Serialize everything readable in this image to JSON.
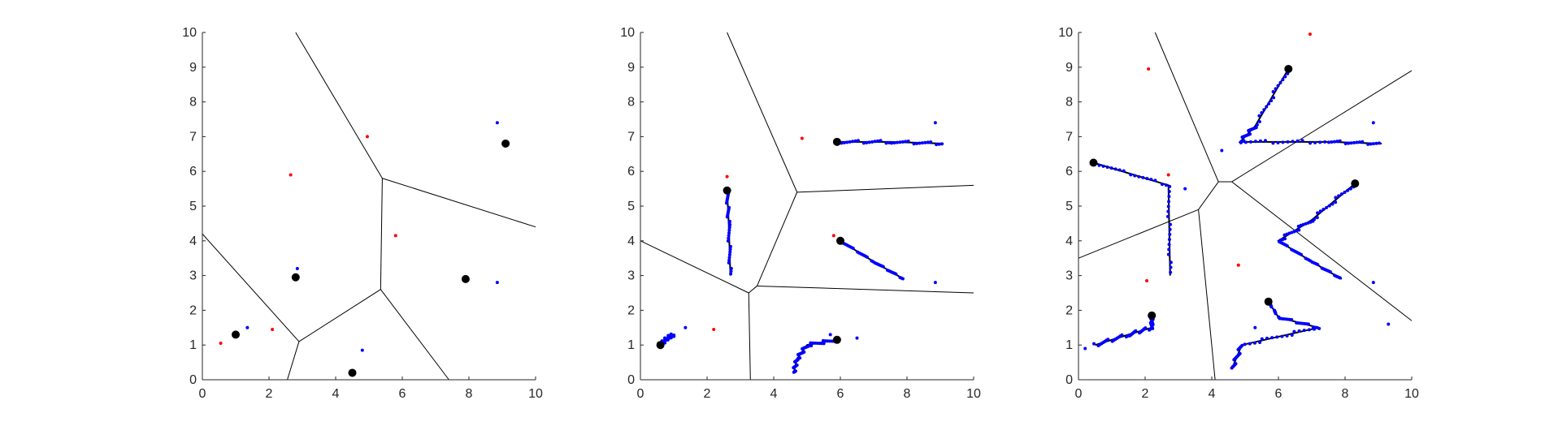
{
  "colors": {
    "axis": "#262626",
    "voronoi": "#000000",
    "blue": "#0000ff",
    "red": "#ff0000",
    "black": "#000000"
  },
  "chart_data": [
    {
      "type": "scatter",
      "title": "",
      "xlabel": "",
      "ylabel": "",
      "xlim": [
        0,
        10
      ],
      "ylim": [
        0,
        10
      ],
      "xticks": [
        "0",
        "2",
        "4",
        "6",
        "8",
        "10"
      ],
      "yticks": [
        "0",
        "1",
        "2",
        "3",
        "4",
        "5",
        "6",
        "7",
        "8",
        "9",
        "10"
      ],
      "voronoi_edges": [
        [
          [
            2.8,
            10
          ],
          [
            5.4,
            5.8
          ]
        ],
        [
          [
            5.4,
            5.8
          ],
          [
            10,
            4.4
          ]
        ],
        [
          [
            5.4,
            5.8
          ],
          [
            5.35,
            2.6
          ]
        ],
        [
          [
            5.35,
            2.6
          ],
          [
            2.9,
            1.1
          ]
        ],
        [
          [
            5.35,
            2.6
          ],
          [
            7.4,
            0
          ]
        ],
        [
          [
            2.9,
            1.1
          ],
          [
            0,
            4.2
          ]
        ],
        [
          [
            2.9,
            1.1
          ],
          [
            2.55,
            0
          ]
        ]
      ],
      "centers": [
        [
          1.0,
          1.3
        ],
        [
          2.8,
          2.95
        ],
        [
          4.5,
          0.2
        ],
        [
          7.9,
          2.9
        ],
        [
          9.1,
          6.8
        ]
      ],
      "red_points": [
        [
          0.55,
          1.05
        ],
        [
          2.1,
          1.45
        ],
        [
          2.65,
          5.9
        ],
        [
          4.95,
          7.0
        ],
        [
          5.8,
          4.15
        ]
      ],
      "blue_points": [
        [
          1.35,
          1.5
        ],
        [
          2.85,
          3.2
        ],
        [
          4.8,
          0.85
        ],
        [
          8.85,
          2.8
        ],
        [
          8.85,
          7.4
        ]
      ],
      "trajectories": []
    },
    {
      "type": "scatter",
      "title": "",
      "xlabel": "",
      "ylabel": "",
      "xlim": [
        0,
        10
      ],
      "ylim": [
        0,
        10
      ],
      "xticks": [
        "0",
        "2",
        "4",
        "6",
        "8",
        "10"
      ],
      "yticks": [
        "0",
        "1",
        "2",
        "3",
        "4",
        "5",
        "6",
        "7",
        "8",
        "9",
        "10"
      ],
      "voronoi_edges": [
        [
          [
            2.6,
            10
          ],
          [
            4.7,
            5.4
          ]
        ],
        [
          [
            4.7,
            5.4
          ],
          [
            10,
            5.6
          ]
        ],
        [
          [
            4.7,
            5.4
          ],
          [
            3.5,
            2.7
          ]
        ],
        [
          [
            3.5,
            2.7
          ],
          [
            10,
            2.5
          ]
        ],
        [
          [
            3.5,
            2.7
          ],
          [
            3.25,
            2.5
          ]
        ],
        [
          [
            3.25,
            2.5
          ],
          [
            0,
            4.0
          ]
        ],
        [
          [
            3.25,
            2.5
          ],
          [
            3.3,
            0
          ]
        ]
      ],
      "centers": [
        [
          0.6,
          1.0
        ],
        [
          2.6,
          5.45
        ],
        [
          5.9,
          6.85
        ],
        [
          6.0,
          4.0
        ],
        [
          5.9,
          1.15
        ]
      ],
      "red_points": [
        [
          0.55,
          1.05
        ],
        [
          2.2,
          1.45
        ],
        [
          2.6,
          5.85
        ],
        [
          4.85,
          6.95
        ],
        [
          5.8,
          4.15
        ]
      ],
      "blue_points": [
        [
          1.35,
          1.5
        ],
        [
          8.85,
          2.8
        ],
        [
          8.85,
          7.4
        ],
        [
          5.7,
          1.3
        ],
        [
          6.5,
          1.2
        ]
      ],
      "trajectories": [
        [
          [
            0.6,
            1.0
          ],
          [
            0.8,
            1.2
          ],
          [
            1.0,
            1.3
          ]
        ],
        [
          [
            2.6,
            5.45
          ],
          [
            2.65,
            4.5
          ],
          [
            2.7,
            3.0
          ]
        ],
        [
          [
            5.9,
            6.85
          ],
          [
            7.5,
            6.85
          ],
          [
            9.1,
            6.8
          ]
        ],
        [
          [
            6.0,
            4.0
          ],
          [
            7.0,
            3.4
          ],
          [
            7.9,
            2.9
          ]
        ],
        [
          [
            5.9,
            1.15
          ],
          [
            5.0,
            1.0
          ],
          [
            4.7,
            0.6
          ],
          [
            4.6,
            0.2
          ]
        ]
      ]
    },
    {
      "type": "scatter",
      "title": "",
      "xlabel": "",
      "ylabel": "",
      "xlim": [
        0,
        10
      ],
      "ylim": [
        0,
        10
      ],
      "xticks": [
        "0",
        "2",
        "4",
        "6",
        "8",
        "10"
      ],
      "yticks": [
        "0",
        "1",
        "2",
        "3",
        "4",
        "5",
        "6",
        "7",
        "8",
        "9",
        "10"
      ],
      "voronoi_edges": [
        [
          [
            2.3,
            10
          ],
          [
            4.2,
            5.7
          ]
        ],
        [
          [
            4.2,
            5.7
          ],
          [
            4.6,
            5.7
          ]
        ],
        [
          [
            4.6,
            5.7
          ],
          [
            10,
            8.9
          ]
        ],
        [
          [
            4.6,
            5.7
          ],
          [
            10,
            1.7
          ]
        ],
        [
          [
            4.2,
            5.7
          ],
          [
            3.6,
            4.9
          ]
        ],
        [
          [
            3.6,
            4.9
          ],
          [
            0,
            3.5
          ]
        ],
        [
          [
            3.6,
            4.9
          ],
          [
            4.1,
            0
          ]
        ]
      ],
      "centers": [
        [
          0.45,
          6.25
        ],
        [
          2.2,
          1.85
        ],
        [
          5.7,
          2.25
        ],
        [
          8.3,
          5.65
        ],
        [
          6.3,
          8.95
        ]
      ],
      "red_points": [
        [
          2.1,
          8.95
        ],
        [
          2.05,
          2.85
        ],
        [
          4.8,
          3.3
        ],
        [
          6.95,
          9.95
        ],
        [
          2.7,
          5.9
        ]
      ],
      "blue_points": [
        [
          0.2,
          0.9
        ],
        [
          8.85,
          2.8
        ],
        [
          8.85,
          7.4
        ],
        [
          9.3,
          1.6
        ],
        [
          3.2,
          5.5
        ],
        [
          4.3,
          6.6
        ],
        [
          5.3,
          1.5
        ]
      ],
      "trajectories": [
        [
          [
            0.45,
            6.25
          ],
          [
            2.7,
            5.6
          ],
          [
            2.75,
            3.0
          ]
        ],
        [
          [
            0.5,
            1.0
          ],
          [
            1.5,
            1.3
          ],
          [
            2.2,
            1.5
          ],
          [
            2.2,
            1.85
          ]
        ],
        [
          [
            5.7,
            2.25
          ],
          [
            6.0,
            1.8
          ],
          [
            7.2,
            1.5
          ],
          [
            4.9,
            1.0
          ],
          [
            4.6,
            0.3
          ]
        ],
        [
          [
            8.3,
            5.65
          ],
          [
            7.0,
            4.6
          ],
          [
            6.0,
            4.0
          ],
          [
            7.0,
            3.4
          ],
          [
            7.9,
            2.9
          ]
        ],
        [
          [
            6.3,
            8.95
          ],
          [
            5.3,
            7.3
          ],
          [
            4.85,
            6.85
          ],
          [
            7.5,
            6.85
          ],
          [
            9.1,
            6.8
          ]
        ]
      ]
    }
  ]
}
